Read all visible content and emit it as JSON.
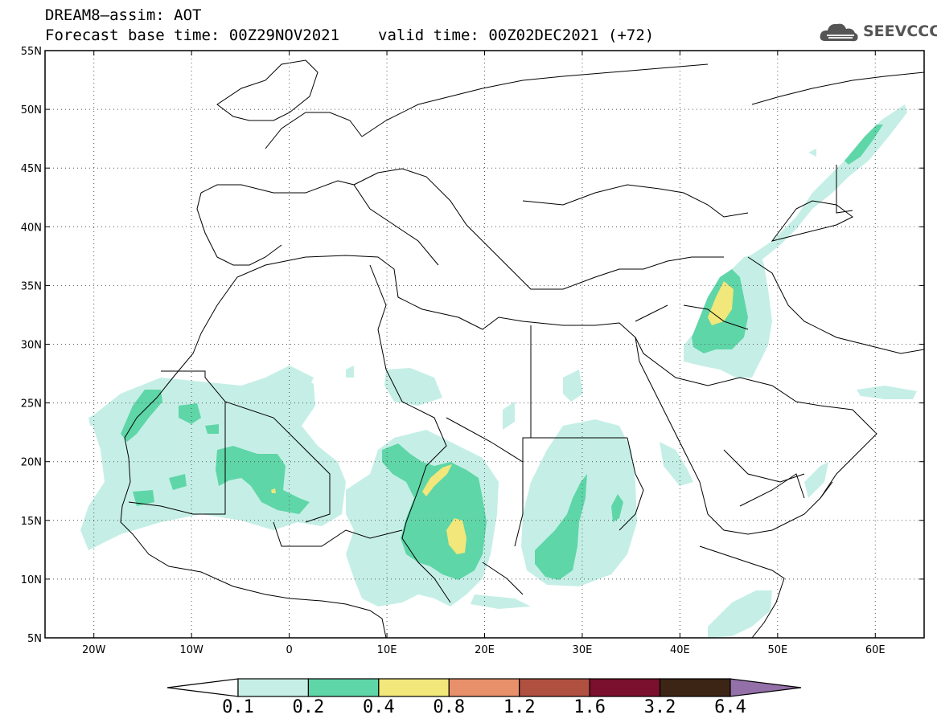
{
  "header": {
    "line1": "DREAM8–assim: AOT",
    "base_time": "Forecast base time: 00Z29NOV2021",
    "valid_time": "valid time: 00Z02DEC2021 (+72)"
  },
  "logo": {
    "text": "SEEVCCC",
    "icon": "cloud-icon"
  },
  "map": {
    "lon_range": [
      -25,
      65
    ],
    "lat_range": [
      5,
      55
    ],
    "lon_ticks": [
      {
        "value": -20,
        "label": "20W"
      },
      {
        "value": -10,
        "label": "10W"
      },
      {
        "value": 0,
        "label": "0"
      },
      {
        "value": 10,
        "label": "10E"
      },
      {
        "value": 20,
        "label": "20E"
      },
      {
        "value": 30,
        "label": "30E"
      },
      {
        "value": 40,
        "label": "40E"
      },
      {
        "value": 50,
        "label": "50E"
      },
      {
        "value": 60,
        "label": "60E"
      }
    ],
    "lat_ticks": [
      {
        "value": 55,
        "label": "55N"
      },
      {
        "value": 50,
        "label": "50N"
      },
      {
        "value": 45,
        "label": "45N"
      },
      {
        "value": 40,
        "label": "40N"
      },
      {
        "value": 35,
        "label": "35N"
      },
      {
        "value": 30,
        "label": "30N"
      },
      {
        "value": 25,
        "label": "25N"
      },
      {
        "value": 20,
        "label": "20N"
      },
      {
        "value": 15,
        "label": "15N"
      },
      {
        "value": 10,
        "label": "10N"
      },
      {
        "value": 5,
        "label": "5N"
      }
    ],
    "grid": "dotted"
  },
  "colorbar": {
    "levels": [
      "0.1",
      "0.2",
      "0.4",
      "0.8",
      "1.2",
      "1.6",
      "3.2",
      "6.4"
    ],
    "colors": [
      "#c5efe6",
      "#5fd6a8",
      "#f2e77a",
      "#e8906a",
      "#b05040",
      "#7a0f2e",
      "#3c2515",
      "#9370a8"
    ],
    "under_color": "#ffffff"
  }
}
